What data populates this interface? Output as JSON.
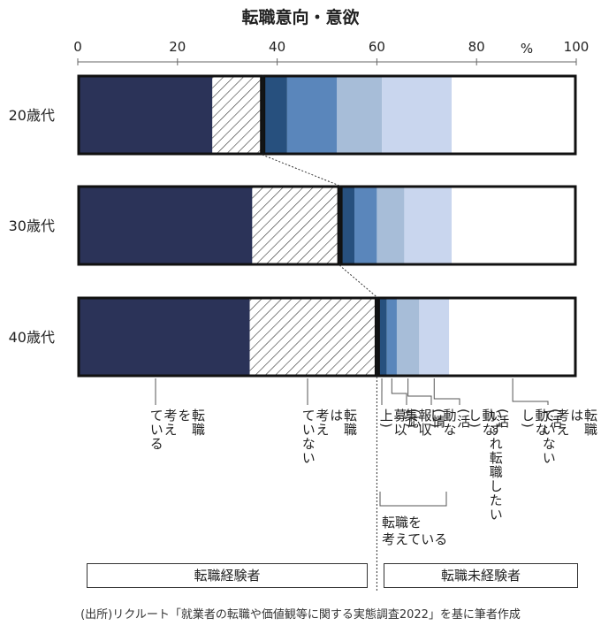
{
  "chart_data": {
    "type": "bar",
    "orientation": "horizontal",
    "stacked": true,
    "title": "転職意向・意欲",
    "unit_label": "%",
    "xlim": [
      0,
      100
    ],
    "xticks": [
      "0",
      "20",
      "40",
      "60",
      "80",
      "100"
    ],
    "categories": [
      "20歳代",
      "30歳代",
      "40歳代"
    ],
    "series": [
      {
        "name": "転職を考えている",
        "group": "転職経験者",
        "color": "#2b3358",
        "values": [
          27,
          35,
          34.5
        ]
      },
      {
        "name": "転職は考えていない",
        "group": "転職経験者",
        "color": "hatch",
        "values": [
          10,
          17.5,
          25.5
        ]
      },
      {
        "name": "転職を考えている(応募以上)",
        "group": "転職未経験者",
        "color": "#27507e",
        "values": [
          5,
          3,
          2
        ]
      },
      {
        "name": "転職を考えている(情報収集)",
        "group": "転職未経験者",
        "color": "#5a86bb",
        "values": [
          10,
          4.5,
          2
        ]
      },
      {
        "name": "転職を考えている(活動なし)",
        "group": "転職未経験者",
        "color": "#a7bdd8",
        "values": [
          9,
          5.5,
          4.5
        ]
      },
      {
        "name": "いずれ転職したい(活動なし)",
        "group": "転職未経験者",
        "color": "#c9d6ee",
        "values": [
          14,
          9.5,
          6
        ]
      },
      {
        "name": "転職は考えていない(活動なし)",
        "group": "転職未経験者",
        "color": "#ffffff",
        "values": [
          25,
          24.5,
          25.5
        ]
      }
    ],
    "grid": true
  },
  "labels": {
    "consider": "転職\nを\n考え\nている",
    "not_consider": "転職\nは\n考え\nていない",
    "apply": "(応\n募以\n上)",
    "info": "(情\n報収\n集)",
    "no_activity": "(活\n動な\nし)",
    "someday": "いずれ転職したい",
    "someday_sub": "(活\n動な\nし)",
    "not_consider_unexp": "転職\nは\n考え\nていない",
    "not_consider_unexp_sub": "(活\n動な\nし)",
    "consider_group": "転職を\n考えている"
  },
  "groups": {
    "experienced": "転職経験者",
    "inexperienced": "転職未経験者"
  },
  "source": "(出所)リクルート「就業者の転職や価値観等に関する実態調査2022」を基に筆者作成"
}
